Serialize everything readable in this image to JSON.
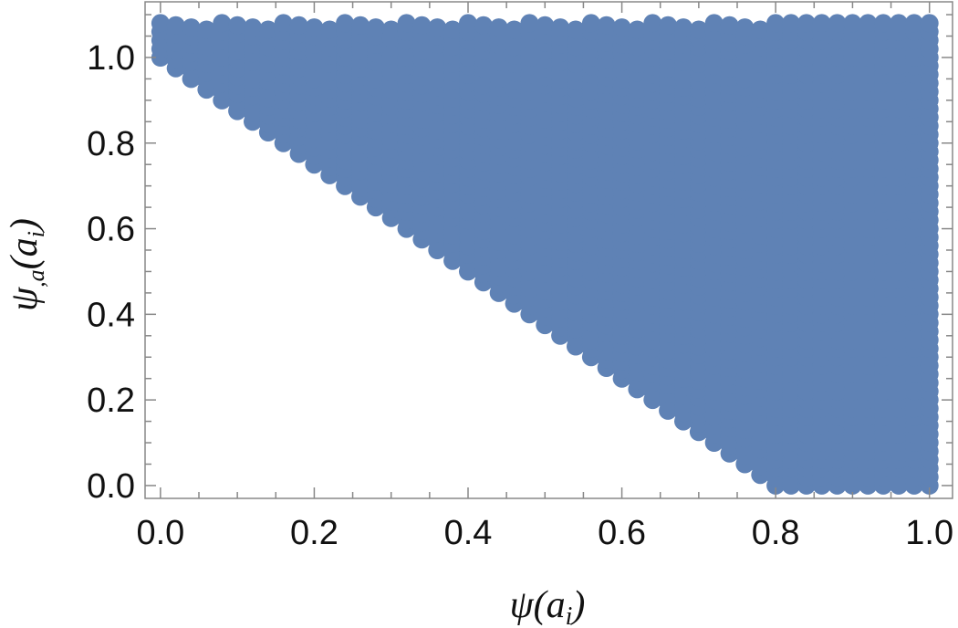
{
  "chart_data": {
    "type": "scatter",
    "xlabel": "ψ(a_i)",
    "ylabel": "ψ,a(a_i)",
    "xlim": [
      -0.02,
      1.03
    ],
    "ylim": [
      -0.03,
      1.13
    ],
    "xticks": [
      0.0,
      0.2,
      0.4,
      0.6,
      0.8,
      1.0
    ],
    "xtick_labels": [
      "0.0",
      "0.2",
      "0.4",
      "0.6",
      "0.8",
      "1.0"
    ],
    "yticks": [
      0.0,
      0.2,
      0.4,
      0.6,
      0.8,
      1.0
    ],
    "ytick_labels": [
      "0.0",
      "0.2",
      "0.4",
      "0.6",
      "0.8",
      "1.0"
    ],
    "grid": false,
    "frame": "full",
    "point_color": "#5f82b5",
    "region": {
      "description_points": [
        {
          "x": 0.0,
          "y": 1.08
        },
        {
          "x": 1.0,
          "y": 1.08
        },
        {
          "x": 1.0,
          "y": 0.0
        },
        {
          "x": 0.8,
          "y": 0.0
        },
        {
          "x": 0.0,
          "y": 1.0
        }
      ],
      "x_range": [
        0.0,
        1.0
      ],
      "y_range": [
        0.0,
        1.08
      ],
      "constraint": "y >= 1 - 1.25 x"
    }
  }
}
